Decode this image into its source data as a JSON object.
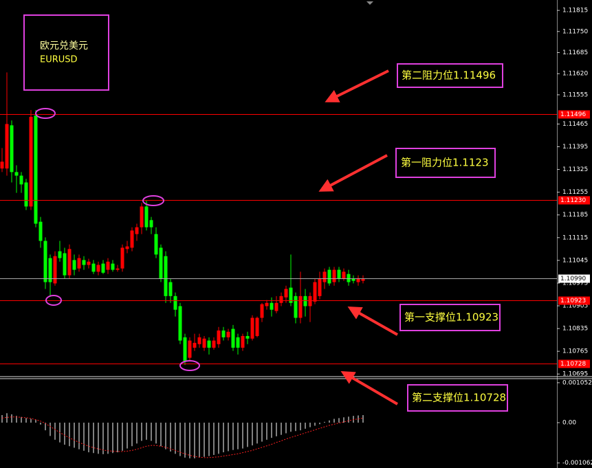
{
  "chart_data": [
    {
      "type": "candlestick",
      "title": "欧元兑美元",
      "subtitle": "EURUSD",
      "up_color": "#ff0000",
      "down_color": "#00ff00",
      "level_color": "#ff0000",
      "ylim": [
        1.10687,
        1.11847
      ],
      "yticks": [
        1.11815,
        {
          "value": 1.1175,
          "label": "1.11750"
        },
        1.11685,
        {
          "value": 1.1162,
          "label": "1.11620"
        },
        1.11555,
        1.11465,
        1.11395,
        1.11325,
        1.11255,
        1.11185,
        1.11115,
        1.11045,
        1.10975,
        1.10905,
        1.10835,
        1.10765,
        1.10695
      ],
      "open": [
        1.11328,
        1.11328,
        1.11461,
        1.11317,
        1.11306,
        1.11285,
        1.11211,
        1.11491,
        1.11164,
        1.11105,
        1.11052,
        1.10974,
        1.11073,
        1.11067,
        1.10999,
        1.11046,
        1.1102,
        1.11046,
        1.11031,
        1.11035,
        1.1101,
        1.11035,
        1.11016,
        1.11035,
        1.11016,
        1.1102,
        1.1108,
        1.11084,
        1.11126,
        1.11147,
        1.11211,
        1.11169,
        1.11126,
        1.11084,
        1.11058,
        1.10978,
        1.10935,
        1.10904,
        1.10808,
        1.10745,
        1.10776,
        1.10787,
        1.10776,
        1.10798,
        1.10776,
        1.10787,
        1.10829,
        1.10808,
        1.10834,
        1.10808,
        1.10776,
        1.10812,
        1.10804,
        1.10812,
        1.10868,
        1.10904,
        1.10914,
        1.10889,
        1.10914,
        1.10931,
        1.10961,
        1.10935,
        1.10868,
        1.10935,
        1.10904,
        1.10918,
        1.10935,
        1.10978,
        1.11016,
        1.10978,
        1.11016,
        1.10988,
        1.11003,
        1.10988,
        1.10978,
        1.10982
      ],
      "high": [
        1.11391,
        1.11624,
        1.11476,
        1.11338,
        1.11317,
        1.11296,
        1.11508,
        1.11508,
        1.11179,
        1.11116,
        1.11063,
        1.11073,
        1.11105,
        1.11084,
        1.11094,
        1.11063,
        1.11063,
        1.11058,
        1.1105,
        1.11046,
        1.11041,
        1.11046,
        1.11052,
        1.11046,
        1.11031,
        1.11094,
        1.11105,
        1.11147,
        1.11158,
        1.11222,
        1.11228,
        1.11179,
        1.11147,
        1.11094,
        1.11073,
        1.10988,
        1.10946,
        1.10914,
        1.10819,
        1.10808,
        1.10819,
        1.10819,
        1.10812,
        1.10808,
        1.10808,
        1.1084,
        1.1084,
        1.10834,
        1.10846,
        1.10819,
        1.10819,
        1.10825,
        1.10876,
        1.10872,
        1.10914,
        1.10923,
        1.10931,
        1.10935,
        1.10946,
        1.10967,
        1.11063,
        1.10946,
        1.1101,
        1.10957,
        1.10946,
        1.10988,
        1.1101,
        1.1102,
        1.11025,
        1.11025,
        1.11025,
        1.1102,
        1.11016,
        1.10999,
        1.10999,
        1.10999
      ],
      "low": [
        1.11317,
        1.11306,
        1.11285,
        1.11253,
        1.11253,
        1.112,
        1.112,
        1.11147,
        1.11084,
        1.10957,
        1.10935,
        1.10967,
        1.11041,
        1.10988,
        1.10988,
        1.10999,
        1.1101,
        1.11016,
        1.1102,
        1.11003,
        1.10999,
        1.11003,
        1.11003,
        1.1101,
        1.1101,
        1.1101,
        1.11067,
        1.11073,
        1.11105,
        1.11126,
        1.11137,
        1.11126,
        1.11052,
        1.10978,
        1.10914,
        1.10914,
        1.10872,
        1.10787,
        1.10723,
        1.10734,
        1.10766,
        1.10776,
        1.10766,
        1.10755,
        1.1077,
        1.10776,
        1.10798,
        1.10798,
        1.10766,
        1.10755,
        1.10766,
        1.10787,
        1.10798,
        1.10808,
        1.10855,
        1.10893,
        1.10872,
        1.10882,
        1.10904,
        1.10914,
        1.10904,
        1.10851,
        1.10851,
        1.10872,
        1.10855,
        1.1091,
        1.10925,
        1.10957,
        1.10967,
        1.10967,
        1.10978,
        1.10982,
        1.10967,
        1.10974,
        1.10967,
        1.10974
      ],
      "close": [
        1.11349,
        1.11465,
        1.11317,
        1.11306,
        1.11279,
        1.11211,
        1.11487,
        1.11158,
        1.11105,
        1.10978,
        1.10978,
        1.11058,
        1.11052,
        1.10999,
        1.1108,
        1.11016,
        1.11052,
        1.11031,
        1.11041,
        1.1101,
        1.11031,
        1.11007,
        1.11041,
        1.11016,
        1.1102,
        1.11084,
        1.11088,
        1.11137,
        1.11147,
        1.11211,
        1.11147,
        1.11147,
        1.11063,
        1.10988,
        1.10935,
        1.10935,
        1.10893,
        1.10798,
        1.10734,
        1.10798,
        1.10791,
        1.10808,
        1.10804,
        1.10776,
        1.10798,
        1.10829,
        1.10808,
        1.10825,
        1.10776,
        1.10776,
        1.10812,
        1.10804,
        1.10868,
        1.10868,
        1.1091,
        1.10914,
        1.10893,
        1.10914,
        1.10935,
        1.10957,
        1.10914,
        1.10868,
        1.10935,
        1.10904,
        1.10935,
        1.10978,
        1.10988,
        1.1101,
        1.10974,
        1.11016,
        1.10988,
        1.1101,
        1.10978,
        1.10982,
        1.1099,
        1.10988
      ],
      "levels": [
        {
          "value": 1.11496,
          "label": "1.11496",
          "text": "第二阻力位1.11496"
        },
        {
          "value": 1.1123,
          "label": "1.11230",
          "text": "第一阻力位1.1123"
        },
        {
          "value": 1.10923,
          "label": "1.10923",
          "text": "第一支撑位1.10923"
        },
        {
          "value": 1.10728,
          "label": "1.10728",
          "text": "第二支撑位1.10728"
        }
      ],
      "current": {
        "value": 1.1099,
        "label": "1.10990"
      }
    },
    {
      "type": "macd",
      "histogram_color": "#ffffff",
      "signal_color": "#ff2020",
      "ylim": [
        -0.001194,
        0.001159
      ],
      "yticks": [
        0.001052,
        {
          "value": 0,
          "label": "0.00"
        },
        -0.001062
      ],
      "histogram": [
        0.0002,
        0.00025,
        0.00022,
        0.00018,
        0.00015,
        0.00012,
        0.0001,
        8e-05,
        -5e-05,
        -0.0002,
        -0.00035,
        -0.00045,
        -0.00052,
        -0.00058,
        -0.00062,
        -0.00066,
        -0.0007,
        -0.00074,
        -0.00078,
        -0.0008,
        -0.00082,
        -0.00083,
        -0.00082,
        -0.0008,
        -0.00078,
        -0.00074,
        -0.00068,
        -0.00062,
        -0.00055,
        -0.00048,
        -0.00045,
        -0.00048,
        -0.00055,
        -0.00062,
        -0.0007,
        -0.00076,
        -0.00082,
        -0.00088,
        -0.00092,
        -0.00094,
        -0.00094,
        -0.00092,
        -0.0009,
        -0.00088,
        -0.00085,
        -0.00082,
        -0.00078,
        -0.00075,
        -0.00072,
        -0.0007,
        -0.00068,
        -0.00064,
        -0.0006,
        -0.00055,
        -0.0005,
        -0.00045,
        -0.0004,
        -0.00036,
        -0.00032,
        -0.00028,
        -0.00024,
        -0.00022,
        -0.0002,
        -0.00016,
        -0.00012,
        -8e-05,
        -4e-05,
        2e-05,
        6e-05,
        0.0001,
        0.00012,
        0.00014,
        0.00016,
        0.00018,
        0.00019,
        0.0002
      ],
      "signal": [
        0.00012,
        0.00014,
        0.00015,
        0.00015,
        0.00014,
        0.00013,
        0.00011,
        8e-05,
        4e-05,
        -2e-05,
        -0.0001,
        -0.00018,
        -0.00026,
        -0.00033,
        -0.0004,
        -0.00046,
        -0.00052,
        -0.00057,
        -0.00062,
        -0.00066,
        -0.00069,
        -0.00072,
        -0.00074,
        -0.00075,
        -0.00076,
        -0.00076,
        -0.00075,
        -0.00073,
        -0.0007,
        -0.00066,
        -0.00062,
        -0.0006,
        -0.0006,
        -0.00062,
        -0.00065,
        -0.00069,
        -0.00073,
        -0.00078,
        -0.00082,
        -0.00086,
        -0.00089,
        -0.00091,
        -0.00092,
        -0.00092,
        -0.00091,
        -0.0009,
        -0.00088,
        -0.00086,
        -0.00084,
        -0.00082,
        -0.00079,
        -0.00076,
        -0.00073,
        -0.00069,
        -0.00065,
        -0.00061,
        -0.00057,
        -0.00052,
        -0.00048,
        -0.00043,
        -0.00039,
        -0.00035,
        -0.00031,
        -0.00027,
        -0.00023,
        -0.00019,
        -0.00015,
        -0.00011,
        -7e-05,
        -4e-05,
        -1e-05,
        2e-05,
        5e-05,
        8e-05,
        0.0001,
        0.00012
      ]
    }
  ]
}
